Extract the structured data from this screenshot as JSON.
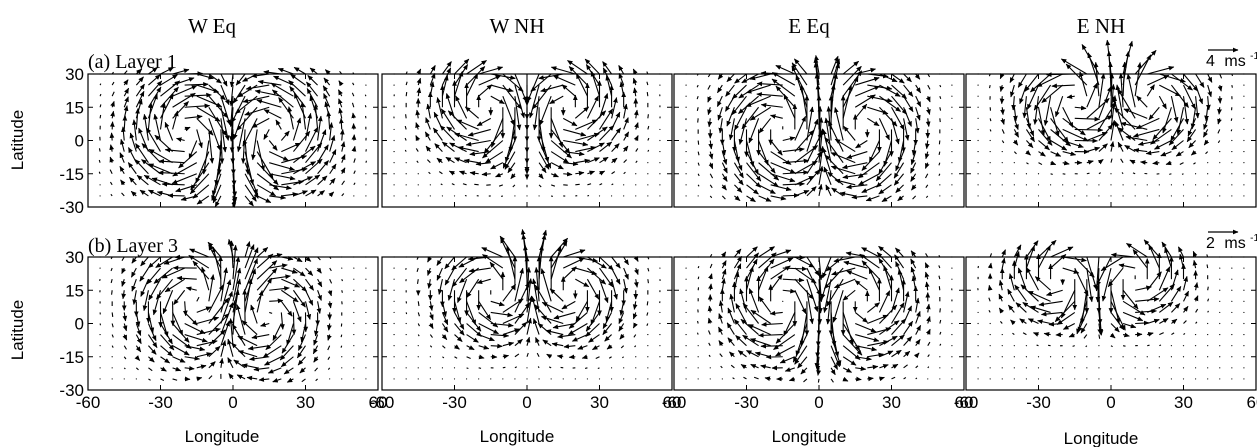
{
  "figure": {
    "column_titles": [
      "W Eq",
      "W NH",
      "E Eq",
      "E NH"
    ],
    "row_labels": [
      "(a) Layer 1",
      "(b) Layer 3"
    ],
    "scale_labels": [
      {
        "value": "4",
        "unit": "ms",
        "exponent": "-1"
      },
      {
        "value": "2",
        "unit": "ms",
        "exponent": "-1"
      }
    ],
    "ylabel": "Latitude",
    "xlabel": "Longitude",
    "arrow_color": "#000000"
  },
  "chart_data": {
    "type": "vector field (quiver)",
    "xlabel": "Longitude",
    "ylabel": "Latitude",
    "xlim": [
      -60,
      60
    ],
    "ylim": [
      -30,
      30
    ],
    "x_ticks": [
      -60,
      -30,
      0,
      30,
      60
    ],
    "x_tick_labels": [
      "-60",
      "-30",
      "0",
      "30",
      "60"
    ],
    "y_ticks": [
      30,
      15,
      0,
      -15,
      -30
    ],
    "y_tick_labels": [
      "30",
      "15",
      "0",
      "-15",
      "-30"
    ],
    "grid_spacing_deg": 5,
    "panels": [
      {
        "row": "(a) Layer 1",
        "column": "W Eq",
        "reference_vector": "4 ms-1",
        "pattern": "two counter-rotating gyres",
        "gyres": [
          {
            "lon": -18,
            "lat": 3,
            "radius_lon": 14,
            "radius_lat": 16,
            "rotation": "clockwise",
            "peak_speed": 4
          },
          {
            "lon": 16,
            "lat": 3,
            "radius_lon": 14,
            "radius_lat": 16,
            "rotation": "counterclockwise",
            "peak_speed": 4
          }
        ]
      },
      {
        "row": "(a) Layer 1",
        "column": "W NH",
        "reference_vector": "4 ms-1",
        "pattern": "two counter-rotating gyres",
        "gyres": [
          {
            "lon": -14,
            "lat": 15,
            "radius_lon": 14,
            "radius_lat": 14,
            "rotation": "clockwise",
            "peak_speed": 4
          },
          {
            "lon": 14,
            "lat": 15,
            "radius_lon": 14,
            "radius_lat": 14,
            "rotation": "counterclockwise",
            "peak_speed": 4
          }
        ]
      },
      {
        "row": "(a) Layer 1",
        "column": "E Eq",
        "reference_vector": "4 ms-1",
        "pattern": "two counter-rotating gyres",
        "gyres": [
          {
            "lon": -14,
            "lat": 5,
            "radius_lon": 14,
            "radius_lat": 17,
            "rotation": "counterclockwise",
            "peak_speed": 4
          },
          {
            "lon": 16,
            "lat": 5,
            "radius_lon": 13,
            "radius_lat": 17,
            "rotation": "clockwise",
            "peak_speed": 4
          }
        ]
      },
      {
        "row": "(a) Layer 1",
        "column": "E NH",
        "reference_vector": "4 ms-1",
        "pattern": "two counter-rotating gyres",
        "gyres": [
          {
            "lon": -12,
            "lat": 18,
            "radius_lon": 14,
            "radius_lat": 12,
            "rotation": "counterclockwise",
            "peak_speed": 4.5
          },
          {
            "lon": 14,
            "lat": 18,
            "radius_lon": 13,
            "radius_lat": 12,
            "rotation": "clockwise",
            "peak_speed": 4.5
          }
        ]
      },
      {
        "row": "(b) Layer 3",
        "column": "W Eq",
        "reference_vector": "2 ms-1",
        "pattern": "two counter-rotating gyres",
        "gyres": [
          {
            "lon": -12,
            "lat": 10,
            "radius_lon": 15,
            "radius_lat": 15,
            "rotation": "counterclockwise",
            "peak_speed": 2
          },
          {
            "lon": 10,
            "lat": 5,
            "radius_lon": 13,
            "radius_lat": 15,
            "rotation": "clockwise",
            "peak_speed": 2
          }
        ]
      },
      {
        "row": "(b) Layer 3",
        "column": "W NH",
        "reference_vector": "2 ms-1",
        "pattern": "two counter-rotating gyres",
        "gyres": [
          {
            "lon": -10,
            "lat": 15,
            "radius_lon": 14,
            "radius_lat": 13,
            "rotation": "counterclockwise",
            "peak_speed": 2
          },
          {
            "lon": 14,
            "lat": 15,
            "radius_lon": 14,
            "radius_lat": 13,
            "rotation": "clockwise",
            "peak_speed": 2
          }
        ]
      },
      {
        "row": "(b) Layer 3",
        "column": "E Eq",
        "reference_vector": "2 ms-1",
        "pattern": "two counter-rotating gyres",
        "gyres": [
          {
            "lon": -12,
            "lat": 10,
            "radius_lon": 14,
            "radius_lat": 15,
            "rotation": "clockwise",
            "peak_speed": 2
          },
          {
            "lon": 14,
            "lat": 10,
            "radius_lon": 14,
            "radius_lat": 15,
            "rotation": "counterclockwise",
            "peak_speed": 2
          }
        ]
      },
      {
        "row": "(b) Layer 3",
        "column": "E NH",
        "reference_vector": "2 ms-1",
        "pattern": "two counter-rotating gyres",
        "gyres": [
          {
            "lon": -18,
            "lat": 20,
            "radius_lon": 13,
            "radius_lat": 11,
            "rotation": "clockwise",
            "peak_speed": 2
          },
          {
            "lon": 6,
            "lat": 20,
            "radius_lon": 13,
            "radius_lat": 11,
            "rotation": "counterclockwise",
            "peak_speed": 2
          }
        ]
      }
    ]
  }
}
